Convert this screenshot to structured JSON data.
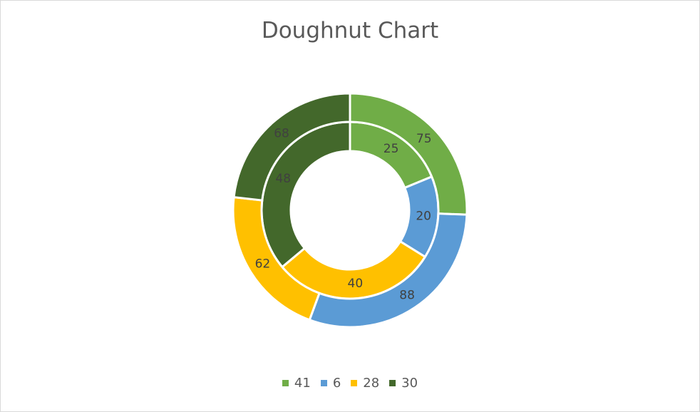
{
  "chart_data": {
    "type": "doughnut",
    "title": "Doughnut Chart",
    "categories": [
      "41",
      "6",
      "28",
      "30"
    ],
    "colors": [
      "#70ad47",
      "#5b9bd5",
      "#ffc000",
      "#43682b"
    ],
    "series": [
      {
        "ring": "inner",
        "values": [
          25,
          20,
          40,
          48
        ]
      },
      {
        "ring": "outer",
        "values": [
          75,
          88,
          62,
          68
        ]
      }
    ],
    "legend": {
      "position": "bottom",
      "items": [
        "41",
        "6",
        "28",
        "30"
      ]
    },
    "data_labels": true
  }
}
